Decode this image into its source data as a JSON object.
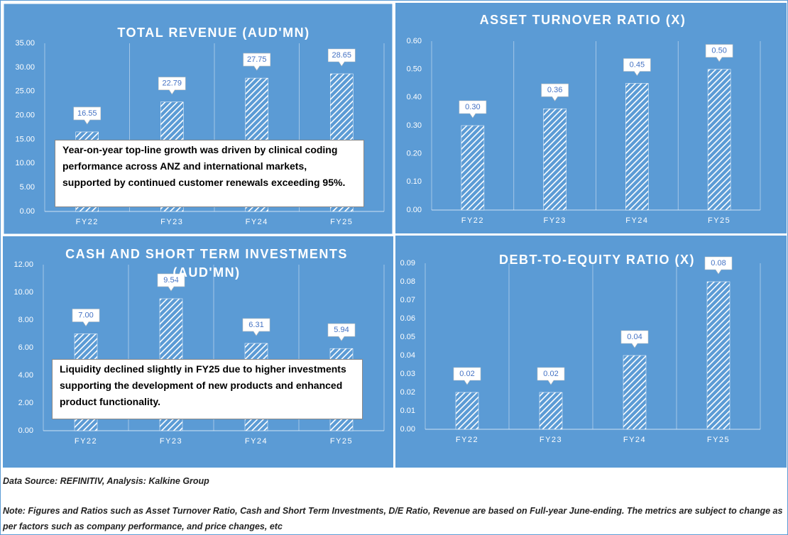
{
  "chart_data": [
    {
      "type": "bar",
      "title": "TOTAL REVENUE (AUD'MN)",
      "categories": [
        "FY22",
        "FY23",
        "FY24",
        "FY25"
      ],
      "values": [
        16.55,
        22.79,
        27.75,
        28.65
      ],
      "color": "#ffffff",
      "ylim": [
        0,
        35
      ],
      "yticks": [
        {
          "value": 0,
          "label": "0.00"
        },
        {
          "value": 5,
          "label": "5.00"
        },
        {
          "value": 10,
          "label": "10.00"
        },
        {
          "value": 15,
          "label": "15.00"
        },
        {
          "value": 20,
          "label": "20.00"
        },
        {
          "value": 25,
          "label": "25.00"
        },
        {
          "value": 30,
          "label": "30.00"
        },
        {
          "value": 35,
          "label": "35.00"
        }
      ],
      "grid": true,
      "annotation": "Year-on-year top-line growth was driven by clinical coding performance across ANZ and international markets, supported by continued customer renewals exceeding 95%."
    },
    {
      "type": "bar",
      "title": "ASSET TURNOVER RATIO (X)",
      "categories": [
        "FY22",
        "FY23",
        "FY24",
        "FY25"
      ],
      "values": [
        0.3,
        0.36,
        0.45,
        0.5
      ],
      "value_labels": [
        "0.30",
        "0.36",
        "0.45",
        "0.50"
      ],
      "color": "#ffffff",
      "ylim": [
        0,
        0.6
      ],
      "yticks": [
        {
          "value": 0,
          "label": "0.00"
        },
        {
          "value": 0.1,
          "label": "0.10"
        },
        {
          "value": 0.2,
          "label": "0.20"
        },
        {
          "value": 0.3,
          "label": "0.30"
        },
        {
          "value": 0.4,
          "label": "0.40"
        },
        {
          "value": 0.5,
          "label": "0.50"
        },
        {
          "value": 0.6,
          "label": "0.60"
        }
      ],
      "grid": true
    },
    {
      "type": "bar",
      "title": "CASH AND SHORT TERM INVESTMENTS (AUD'MN)",
      "categories": [
        "FY22",
        "FY23",
        "FY24",
        "FY25"
      ],
      "values": [
        7,
        9.54,
        6.31,
        5.94
      ],
      "value_labels": [
        "7.00",
        "9.54",
        "6.31",
        "5.94"
      ],
      "color": "#ffffff",
      "ylim": [
        0,
        12
      ],
      "yticks": [
        {
          "value": 0,
          "label": "0.00"
        },
        {
          "value": 2,
          "label": "2.00"
        },
        {
          "value": 4,
          "label": "4.00"
        },
        {
          "value": 6,
          "label": "6.00"
        },
        {
          "value": 8,
          "label": "8.00"
        },
        {
          "value": 10,
          "label": "10.00"
        },
        {
          "value": 12,
          "label": "12.00"
        }
      ],
      "grid": true,
      "annotation": "Liquidity declined slightly in FY25 due to higher investments supporting the development of new products and enhanced product functionality."
    },
    {
      "type": "bar",
      "title": "DEBT-TO-EQUITY RATIO (X)",
      "categories": [
        "FY22",
        "FY23",
        "FY24",
        "FY25"
      ],
      "values": [
        0.02,
        0.02,
        0.04,
        0.08
      ],
      "value_labels": [
        "0.02",
        "0.02",
        "0.04",
        "0.08"
      ],
      "color": "#ffffff",
      "ylim": [
        0,
        0.09
      ],
      "yticks": [
        {
          "value": 0,
          "label": "0.00"
        },
        {
          "value": 0.01,
          "label": "0.01"
        },
        {
          "value": 0.02,
          "label": "0.02"
        },
        {
          "value": 0.03,
          "label": "0.03"
        },
        {
          "value": 0.04,
          "label": "0.04"
        },
        {
          "value": 0.05,
          "label": "0.05"
        },
        {
          "value": 0.06,
          "label": "0.06"
        },
        {
          "value": 0.07,
          "label": "0.07"
        },
        {
          "value": 0.08,
          "label": "0.08"
        },
        {
          "value": 0.09,
          "label": "0.09"
        }
      ],
      "grid": true
    }
  ],
  "source": "Data Source: REFINITIV, Analysis: Kalkine Group",
  "note": "Note: Figures and Ratios such as Asset Turnover Ratio, Cash and Short Term Investments, D/E Ratio, Revenue are based on Full-year June-ending. The metrics are subject to change as per factors such as company performance, and price changes, etc"
}
